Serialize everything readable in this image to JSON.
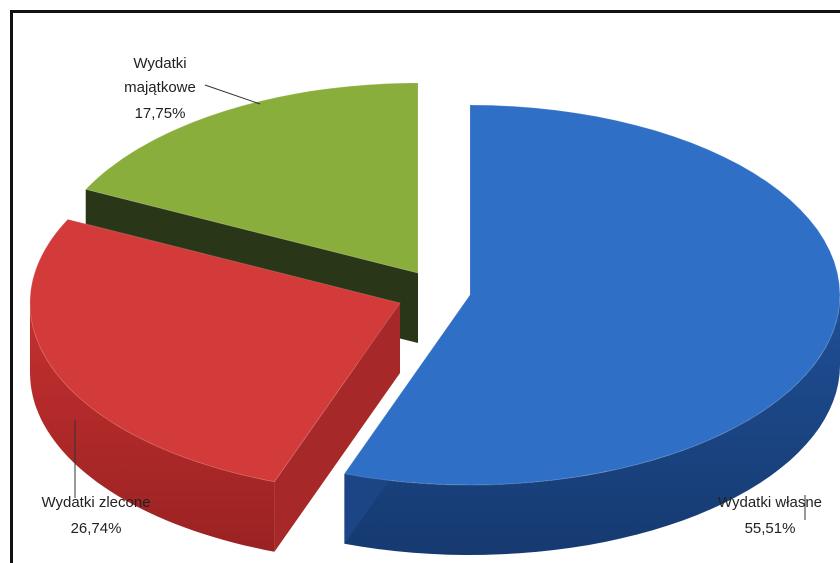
{
  "chart_data": {
    "type": "pie",
    "title": "",
    "slices": [
      {
        "label": "Wydatki własne",
        "value": 55.51,
        "value_label": "55,51%",
        "color": "#2e6fc4"
      },
      {
        "label": "Wydatki zlecone",
        "value": 26.74,
        "value_label": "26,74%",
        "color": "#d13b3b"
      },
      {
        "label": "Wydatki majątkowe",
        "value": 17.75,
        "value_label": "17,75%",
        "color": "#8fae3a"
      }
    ],
    "legend": "none",
    "style": "3d-exploded"
  },
  "labels": {
    "wlasne_name": "Wydatki własne",
    "wlasne_value": "55,51%",
    "zlecone_name": "Wydatki zlecone",
    "zlecone_value": "26,74%",
    "majatkowe_line1": "Wydatki",
    "majatkowe_line2": "majątkowe",
    "majatkowe_value": "17,75%"
  }
}
